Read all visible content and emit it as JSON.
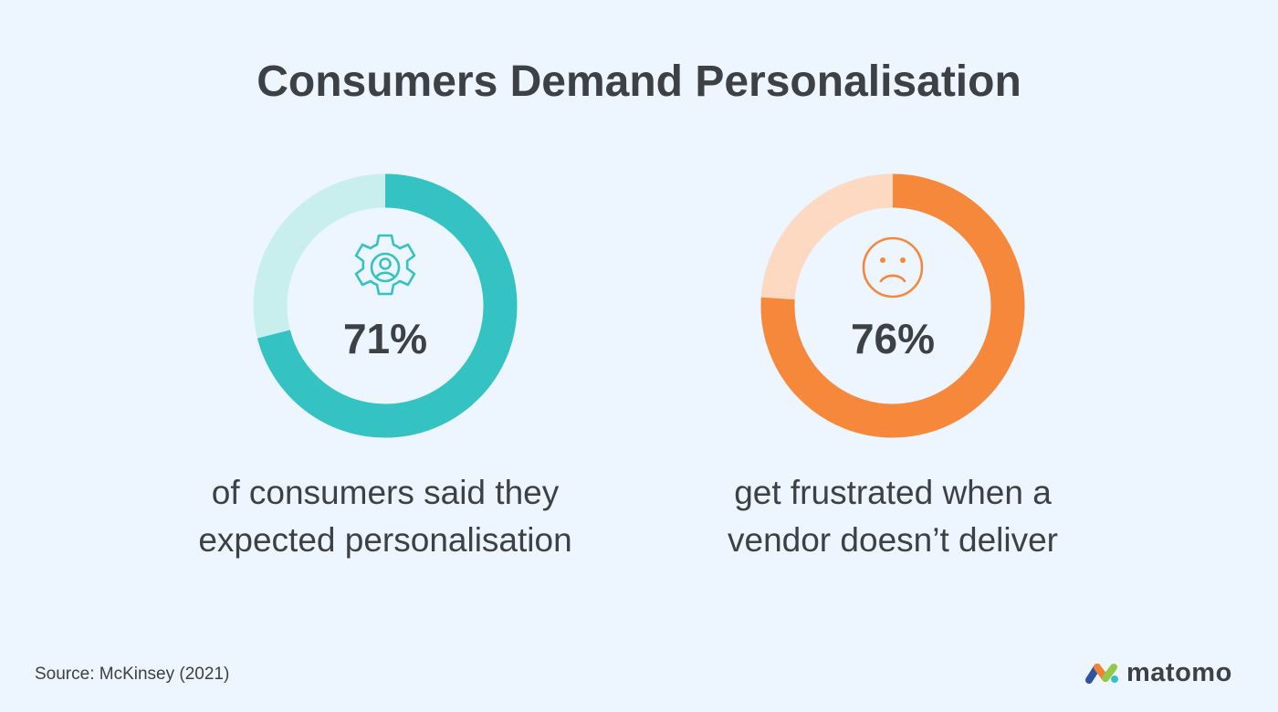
{
  "title": "Consumers Demand Personalisation",
  "chart_data": [
    {
      "type": "pie",
      "value": 71,
      "unit": "%",
      "label": "71%",
      "caption": [
        "of consumers said they",
        "expected personalisation"
      ],
      "icon": "gear-user-icon",
      "colors": {
        "filled": "#35c2c2",
        "remainder": "#c8eeee"
      }
    },
    {
      "type": "pie",
      "value": 76,
      "unit": "%",
      "label": "76%",
      "caption": [
        "get frustrated when a",
        "vendor doesn’t deliver"
      ],
      "icon": "sad-face-icon",
      "colors": {
        "filled": "#f5883a",
        "remainder": "#fdd9c2"
      }
    }
  ],
  "source": "Source: McKinsey (2021)",
  "brand": {
    "name": "matomo",
    "icon": "matomo-logo-icon"
  }
}
